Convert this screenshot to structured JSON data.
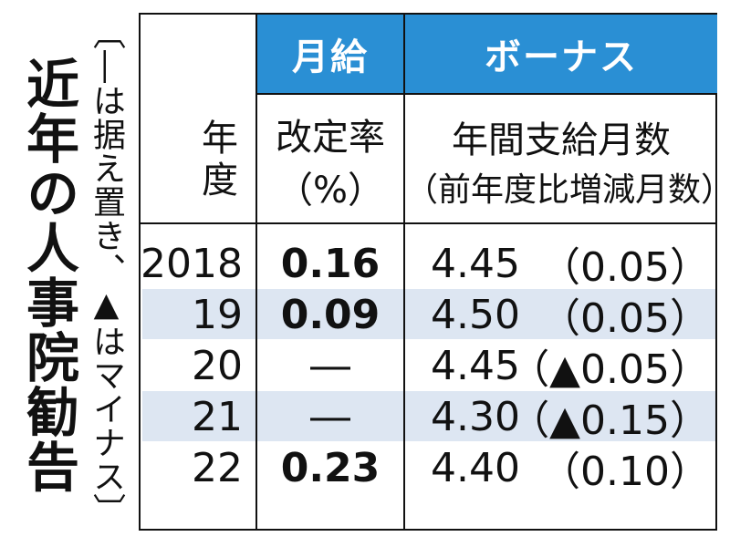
{
  "title": "近年の人事院勧告",
  "note": "〔―は据え置き、▲はマイナス〕",
  "table": {
    "group_headers": {
      "monthly": "月給",
      "bonus": "ボーナス"
    },
    "col_headers": {
      "year": "年度",
      "rate_line1": "改定率",
      "rate_line2": "（%）",
      "bonus_line1": "年間支給月数",
      "bonus_line2": "（前年度比増減月数）"
    },
    "rows": [
      {
        "year": "2018",
        "rate": "0.16",
        "months": "4.45",
        "change": "（0.05）"
      },
      {
        "year": "19",
        "rate": "0.09",
        "months": "4.50",
        "change": "（0.05）"
      },
      {
        "year": "20",
        "rate": "―",
        "months": "4.45",
        "change": "（▲0.05）"
      },
      {
        "year": "21",
        "rate": "―",
        "months": "4.30",
        "change": "（▲0.15）"
      },
      {
        "year": "22",
        "rate": "0.23",
        "months": "4.40",
        "change": "（0.10）"
      }
    ],
    "colors": {
      "header_blue": "#2a8fd4",
      "stripe": "#dde6f2"
    }
  }
}
